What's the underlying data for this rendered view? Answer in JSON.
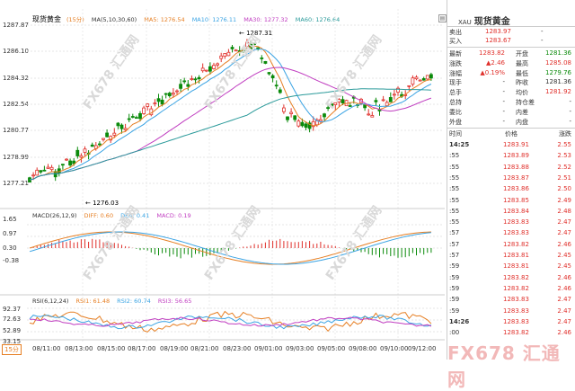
{
  "main_legend": {
    "name": "现货黄金",
    "period": "(15分)",
    "ma": "MA(5,10,30,60)",
    "ma5": "MA5: 1276.54",
    "ma10": "MA10: 1276.11",
    "ma30": "MA30: 1277.32",
    "ma60": "MA60: 1276.64"
  },
  "price_axis": [
    "1287.87",
    "1286.10",
    "1284.32",
    "1282.54",
    "1280.77",
    "1278.99",
    "1277.21"
  ],
  "annotations": {
    "high": "1287.31",
    "low": "1276.03"
  },
  "macd_legend": {
    "label": "MACD(26,12,9)",
    "diff": "DIFF: 0.60",
    "dea": "DEA: 0.41",
    "macd": "MACD: 0.19"
  },
  "macd_axis": [
    "1.65",
    "0.97",
    "0.30",
    "-0.38"
  ],
  "rsi_legend": {
    "label": "RSI(6,12,24)",
    "rsi1": "RSI1: 61.48",
    "rsi2": "RSI2: 60.74",
    "rsi3": "RSI3: 56.65"
  },
  "rsi_axis": [
    "92.37",
    "72.63",
    "52.89",
    "33.15"
  ],
  "xaxis": {
    "period_badge": "15分",
    "times": [
      "08/11:00",
      "08/13:00",
      "08/15:00",
      "08/17:00",
      "08/19:00",
      "08/21:00",
      "08/23:00",
      "09/01:00",
      "09/03:00",
      "09/05:00",
      "09/08:00",
      "09/10:00",
      "09/12:00"
    ]
  },
  "watermark": "FX678 汇通网",
  "sidebar": {
    "symbol": "XAU",
    "title": "现货黄金",
    "quote": [
      {
        "label": "卖出",
        "value": "1283.97",
        "extra": "-",
        "color": "red"
      },
      {
        "label": "买入",
        "value": "1283.67",
        "extra": "-",
        "color": "red"
      }
    ],
    "stats": [
      {
        "l1": "最新",
        "v1": "1283.82",
        "c1": "red",
        "l2": "开盘",
        "v2": "1281.36",
        "c2": "green"
      },
      {
        "l1": "涨跌",
        "v1": "▲2.46",
        "c1": "red",
        "l2": "最高",
        "v2": "1285.08",
        "c2": "red"
      },
      {
        "l1": "涨幅",
        "v1": "▲0.19%",
        "c1": "red",
        "l2": "最低",
        "v2": "1279.76",
        "c2": "green"
      },
      {
        "l1": "现手",
        "v1": "-",
        "c1": "",
        "l2": "昨收",
        "v2": "1281.36",
        "c2": ""
      },
      {
        "l1": "总手",
        "v1": "-",
        "c1": "",
        "l2": "均价",
        "v2": "1281.92",
        "c2": "red"
      },
      {
        "l1": "总持",
        "v1": "-",
        "c1": "",
        "l2": "持仓差",
        "v2": "-",
        "c2": ""
      },
      {
        "l1": "委比",
        "v1": "-",
        "c1": "",
        "l2": "内差",
        "v2": "-",
        "c2": ""
      },
      {
        "l1": "外盘",
        "v1": "-",
        "c1": "",
        "l2": "内盘",
        "v2": "-",
        "c2": ""
      }
    ],
    "tick_headers": [
      "时间",
      "价格",
      "涨跌"
    ],
    "ticks": [
      {
        "time": "14:25",
        "price": "1283.91",
        "chg": "2.55"
      },
      {
        "time": ":55",
        "price": "1283.89",
        "chg": "2.53"
      },
      {
        "time": ":55",
        "price": "1283.88",
        "chg": "2.52"
      },
      {
        "time": ":55",
        "price": "1283.87",
        "chg": "2.51"
      },
      {
        "time": ":55",
        "price": "1283.86",
        "chg": "2.50"
      },
      {
        "time": ":55",
        "price": "1283.85",
        "chg": "2.49"
      },
      {
        "time": ":55",
        "price": "1283.84",
        "chg": "2.48"
      },
      {
        "time": ":55",
        "price": "1283.83",
        "chg": "2.47"
      },
      {
        "time": ":57",
        "price": "1283.83",
        "chg": "2.47"
      },
      {
        "time": ":57",
        "price": "1283.82",
        "chg": "2.46"
      },
      {
        "time": ":57",
        "price": "1283.81",
        "chg": "2.45"
      },
      {
        "time": ":59",
        "price": "1283.81",
        "chg": "2.45"
      },
      {
        "time": ":59",
        "price": "1283.82",
        "chg": "2.46"
      },
      {
        "time": ":59",
        "price": "1283.82",
        "chg": "2.46"
      },
      {
        "time": ":59",
        "price": "1283.83",
        "chg": "2.47"
      },
      {
        "time": ":59",
        "price": "1283.83",
        "chg": "2.47"
      },
      {
        "time": "14:26",
        "price": "1283.83",
        "chg": "2.47"
      },
      {
        "time": ":00",
        "price": "1283.82",
        "chg": "2.46"
      }
    ]
  },
  "brand": "FX678 汇通网"
}
